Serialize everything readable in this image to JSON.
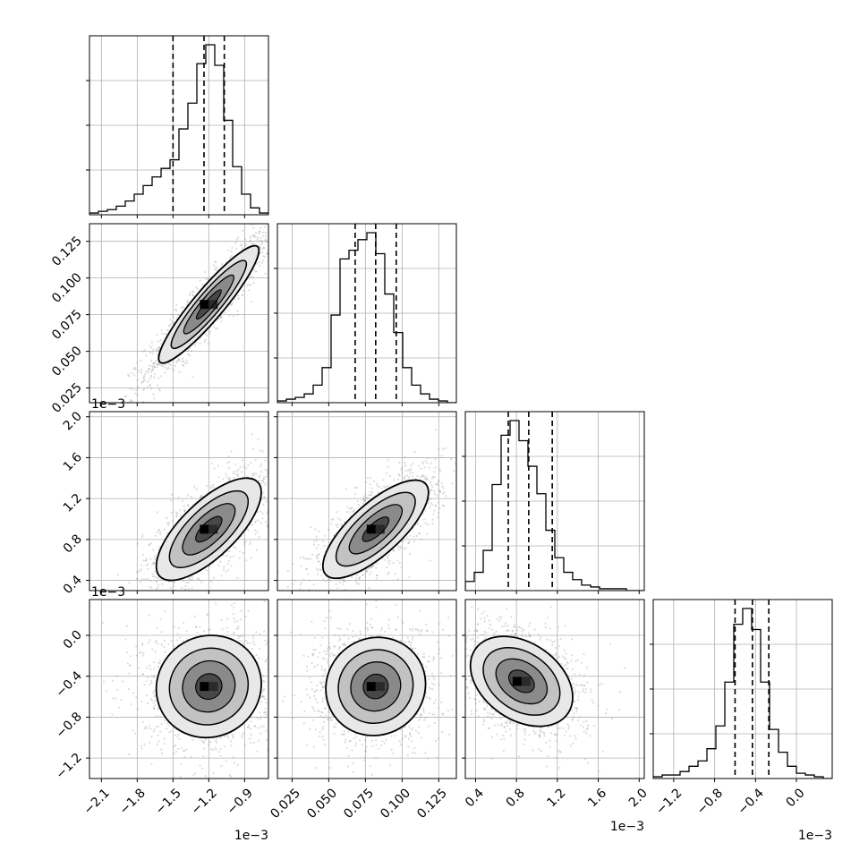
{
  "chart_data": {
    "type": "corner",
    "grid": true,
    "tick_labels": {
      "x": [
        [
          "−2.1",
          "−1.8",
          "−1.5",
          "−1.2",
          "−0.9"
        ],
        [
          "0.025",
          "0.050",
          "0.075",
          "0.100",
          "0.125"
        ],
        [
          "0.4",
          "0.8",
          "1.2",
          "1.6",
          "2.0"
        ],
        [
          "−1.2",
          "−0.8",
          "−0.4",
          "0.0"
        ]
      ],
      "y": [
        [],
        [
          "0.025",
          "0.050",
          "0.075",
          "0.100",
          "0.125"
        ],
        [
          "0.4",
          "0.8",
          "1.2",
          "1.6",
          "2.0"
        ],
        [
          "−1.2",
          "−0.8",
          "−0.4",
          "0.0"
        ]
      ]
    },
    "offset_text": "1e−3",
    "parameters": [
      {
        "tick_values": [
          -2.1,
          -1.8,
          -1.5,
          -1.2,
          -0.9
        ],
        "range": [
          -2.2,
          -0.7
        ],
        "quantiles": [
          -1.5,
          -1.24,
          -1.07
        ],
        "hist": [
          0.01,
          0.02,
          0.03,
          0.05,
          0.08,
          0.12,
          0.17,
          0.22,
          0.27,
          0.32,
          0.5,
          0.65,
          0.88,
          0.99,
          0.87,
          0.55,
          0.28,
          0.12,
          0.04,
          0.01
        ]
      },
      {
        "tick_values": [
          0.025,
          0.05,
          0.075,
          0.1,
          0.125
        ],
        "range": [
          0.015,
          0.137
        ],
        "quantiles": [
          0.068,
          0.082,
          0.096
        ],
        "hist": [
          0.01,
          0.02,
          0.03,
          0.05,
          0.1,
          0.2,
          0.5,
          0.82,
          0.87,
          0.93,
          0.97,
          0.85,
          0.62,
          0.4,
          0.2,
          0.1,
          0.05,
          0.02,
          0.01,
          0.0
        ]
      },
      {
        "tick_values": [
          0.4,
          0.8,
          1.2,
          1.6,
          2.0
        ],
        "range": [
          0.3,
          2.05
        ],
        "quantiles": [
          0.72,
          0.92,
          1.15
        ],
        "hist": [
          0.05,
          0.1,
          0.22,
          0.58,
          0.85,
          0.93,
          0.82,
          0.68,
          0.53,
          0.33,
          0.18,
          0.1,
          0.06,
          0.03,
          0.02,
          0.01,
          0.01,
          0.01,
          0.0,
          0.0
        ]
      },
      {
        "tick_values": [
          -1.2,
          -0.8,
          -0.4,
          0.0
        ],
        "range": [
          -1.4,
          0.35
        ],
        "quantiles": [
          -0.6,
          -0.43,
          -0.27
        ],
        "hist": [
          0.01,
          0.02,
          0.02,
          0.04,
          0.07,
          0.1,
          0.17,
          0.3,
          0.55,
          0.88,
          0.97,
          0.85,
          0.55,
          0.28,
          0.15,
          0.07,
          0.03,
          0.02,
          0.01,
          0.0
        ]
      }
    ],
    "correlations": {
      "1-0": {
        "mean": [
          -1.2,
          0.082
        ],
        "sd": [
          0.21,
          0.02
        ],
        "rho": 0.92
      },
      "2-0": {
        "mean": [
          -1.2,
          0.9
        ],
        "sd": [
          0.22,
          0.25
        ],
        "rho": 0.72
      },
      "2-1": {
        "mean": [
          0.082,
          0.9
        ],
        "sd": [
          0.018,
          0.24
        ],
        "rho": 0.75
      },
      "3-0": {
        "mean": [
          -1.2,
          -0.5
        ],
        "sd": [
          0.22,
          0.25
        ],
        "rho": 0.05
      },
      "3-1": {
        "mean": [
          0.082,
          -0.5
        ],
        "sd": [
          0.017,
          0.24
        ],
        "rho": 0.05
      },
      "3-2": {
        "mean": [
          0.85,
          -0.45
        ],
        "sd": [
          0.25,
          0.22
        ],
        "rho": -0.35
      }
    },
    "colors": {
      "line": "#000000",
      "grid": "#b0b0b0",
      "points": "#9a9a9a",
      "density_dark": "#000000"
    }
  }
}
